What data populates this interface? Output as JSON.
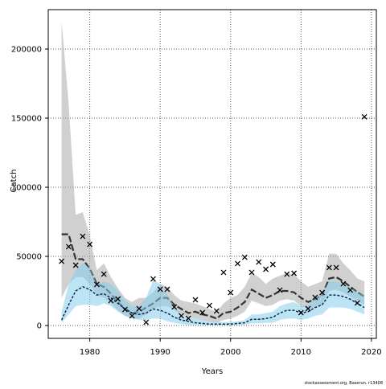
{
  "chart_data": {
    "type": "line",
    "x_label": "Years",
    "y_label": "Catch",
    "footnote": "stockassessment.org, Baserun, r13408",
    "x": [
      1976,
      1977,
      1978,
      1979,
      1980,
      1981,
      1982,
      1983,
      1984,
      1985,
      1986,
      1987,
      1988,
      1989,
      1990,
      1991,
      1992,
      1993,
      1994,
      1995,
      1996,
      1997,
      1998,
      1999,
      2000,
      2001,
      2002,
      2003,
      2004,
      2005,
      2006,
      2007,
      2008,
      2009,
      2010,
      2011,
      2012,
      2013,
      2014,
      2015,
      2016,
      2017,
      2018,
      2019
    ],
    "xlim": [
      1974.1,
      2020.7
    ],
    "xticks": [
      1980,
      1990,
      2000,
      2010,
      2020
    ],
    "ylim": [
      -9300,
      228500
    ],
    "yticks": [
      0,
      50000,
      100000,
      150000,
      200000
    ],
    "grid": true,
    "series": [
      {
        "color": "#333333",
        "band_color": "#a9a9a9",
        "style": "long-dash",
        "values": [
          66000,
          66000,
          48000,
          48000,
          41000,
          30000,
          28000,
          23000,
          17000,
          12000,
          9000,
          10000,
          13000,
          16000,
          20000,
          20000,
          15000,
          12000,
          9000,
          10000,
          8000,
          7000,
          5000,
          9000,
          10000,
          13000,
          17000,
          26000,
          23000,
          20000,
          22000,
          25000,
          25000,
          24000,
          20000,
          17000,
          19000,
          22000,
          34000,
          35000,
          32000,
          28000,
          24000,
          21000
        ],
        "upper": [
          220000,
          160000,
          80000,
          82000,
          65000,
          40000,
          45000,
          35000,
          27000,
          20000,
          17000,
          20000,
          20000,
          24000,
          30000,
          28000,
          22000,
          18000,
          17000,
          16000,
          14000,
          12000,
          10000,
          16000,
          20000,
          22000,
          28000,
          38000,
          35000,
          30000,
          34000,
          36000,
          38000,
          37000,
          32000,
          28000,
          30000,
          32000,
          52000,
          52000,
          45000,
          40000,
          34000,
          32000
        ],
        "lower": [
          20000,
          30000,
          35000,
          35000,
          30000,
          22000,
          20000,
          16000,
          11000,
          7000,
          5000,
          5000,
          8000,
          12000,
          14000,
          14000,
          11000,
          8000,
          6000,
          5000,
          4000,
          3000,
          2000,
          4000,
          5000,
          7000,
          10000,
          18000,
          16000,
          14000,
          15000,
          18000,
          19000,
          18000,
          14000,
          12000,
          13000,
          15000,
          25000,
          26000,
          24000,
          21000,
          18000,
          15000
        ]
      },
      {
        "color": "#0b2a4a",
        "band_color": "#87ceeb",
        "style": "dash",
        "values": [
          4000,
          15000,
          25000,
          28000,
          26000,
          22000,
          23000,
          20000,
          16000,
          12000,
          9000,
          8000,
          9000,
          12000,
          11000,
          9000,
          6000,
          4000,
          3000,
          2000,
          1500,
          1000,
          1000,
          1000,
          1000,
          1500,
          2000,
          4500,
          4500,
          5000,
          6000,
          9000,
          11000,
          11000,
          9000,
          10000,
          13000,
          15000,
          22000,
          22000,
          21000,
          19000,
          16000,
          13000
        ],
        "upper": [
          10000,
          30000,
          40000,
          45000,
          42000,
          30000,
          32000,
          30000,
          25000,
          18000,
          14000,
          14000,
          20000,
          33000,
          30000,
          22000,
          14000,
          8000,
          6000,
          5000,
          4000,
          3000,
          2500,
          2500,
          2500,
          3000,
          4000,
          8000,
          8000,
          9000,
          10000,
          14000,
          16000,
          17000,
          14000,
          15000,
          20000,
          24000,
          32000,
          32000,
          30000,
          28000,
          24000,
          22000
        ],
        "lower": [
          2000,
          8000,
          14000,
          15000,
          15000,
          14000,
          16000,
          14000,
          10000,
          7000,
          5000,
          4000,
          4000,
          5000,
          5000,
          3000,
          2000,
          1000,
          500,
          300,
          200,
          200,
          200,
          200,
          200,
          300,
          500,
          1500,
          1500,
          2000,
          2000,
          4000,
          5000,
          5000,
          4000,
          5000,
          7000,
          8000,
          13000,
          13000,
          13000,
          12000,
          10000,
          8000
        ]
      },
      {
        "color": "#000000",
        "marker": "x",
        "values": [
          46500,
          57000,
          43600,
          64500,
          58700,
          29700,
          37200,
          18000,
          19200,
          11600,
          7000,
          12200,
          2300,
          33700,
          26200,
          26200,
          13400,
          7000,
          5200,
          18600,
          9300,
          14500,
          10500,
          38400,
          23800,
          44800,
          49400,
          38400,
          45900,
          40700,
          44200,
          25600,
          37200,
          37800,
          9300,
          12200,
          20300,
          23800,
          41900,
          41900,
          30200,
          25600,
          16300,
          151000
        ]
      }
    ]
  }
}
